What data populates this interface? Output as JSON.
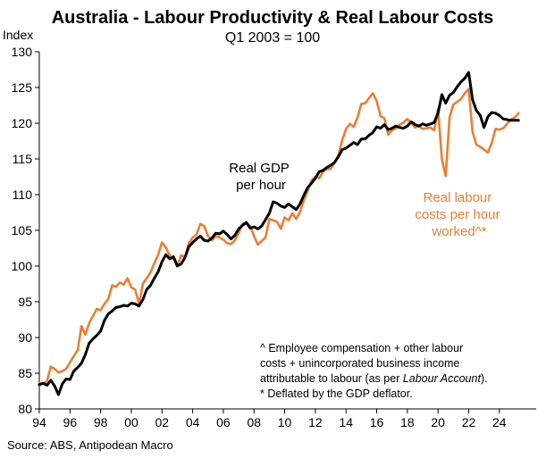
{
  "chart_data": {
    "type": "line",
    "title": "Australia - Labour Productivity & Real Labour Costs",
    "subtitle": "Q1 2003 = 100",
    "ylabel": "Index",
    "xlabel": "",
    "ylim": [
      80,
      130
    ],
    "yticks": [
      80,
      85,
      90,
      95,
      100,
      105,
      110,
      115,
      120,
      125,
      130
    ],
    "xlim": [
      1994,
      2026.4
    ],
    "xticks": [
      1994,
      1996,
      1998,
      2000,
      2002,
      2004,
      2006,
      2008,
      2010,
      2012,
      2014,
      2016,
      2018,
      2020,
      2022,
      2024
    ],
    "xticklabels": [
      "94",
      "96",
      "98",
      "00",
      "02",
      "04",
      "06",
      "08",
      "10",
      "12",
      "14",
      "16",
      "18",
      "20",
      "22",
      "24"
    ],
    "grid": false,
    "series": [
      {
        "name": "Real GDP per hour",
        "label_lines": [
          "Real GDP",
          "per hour"
        ],
        "color": "#000000",
        "points": [
          [
            1994.0,
            83.4
          ],
          [
            1994.25,
            83.6
          ],
          [
            1994.5,
            83.3
          ],
          [
            1994.75,
            84.0
          ],
          [
            1995.0,
            83.2
          ],
          [
            1995.25,
            82.0
          ],
          [
            1995.5,
            83.5
          ],
          [
            1995.75,
            84.2
          ],
          [
            1996.0,
            84.1
          ],
          [
            1996.25,
            85.3
          ],
          [
            1996.5,
            85.8
          ],
          [
            1996.75,
            86.4
          ],
          [
            1997.0,
            87.6
          ],
          [
            1997.25,
            89.2
          ],
          [
            1997.5,
            89.8
          ],
          [
            1997.75,
            90.3
          ],
          [
            1998.0,
            90.9
          ],
          [
            1998.25,
            92.4
          ],
          [
            1998.5,
            93.3
          ],
          [
            1998.75,
            93.7
          ],
          [
            1999.0,
            94.2
          ],
          [
            1999.25,
            94.3
          ],
          [
            1999.5,
            94.5
          ],
          [
            1999.75,
            94.4
          ],
          [
            2000.0,
            94.8
          ],
          [
            2000.25,
            94.7
          ],
          [
            2000.5,
            94.4
          ],
          [
            2000.75,
            95.3
          ],
          [
            2001.0,
            96.7
          ],
          [
            2001.25,
            97.3
          ],
          [
            2001.5,
            98.3
          ],
          [
            2001.75,
            99.2
          ],
          [
            2002.0,
            100.6
          ],
          [
            2002.25,
            101.6
          ],
          [
            2002.5,
            101.0
          ],
          [
            2002.75,
            101.3
          ],
          [
            2003.0,
            100.0
          ],
          [
            2003.25,
            100.3
          ],
          [
            2003.5,
            101.2
          ],
          [
            2003.75,
            102.7
          ],
          [
            2004.0,
            103.3
          ],
          [
            2004.25,
            103.8
          ],
          [
            2004.5,
            104.2
          ],
          [
            2004.75,
            103.6
          ],
          [
            2005.0,
            103.5
          ],
          [
            2005.25,
            103.9
          ],
          [
            2005.5,
            104.6
          ],
          [
            2005.75,
            104.5
          ],
          [
            2006.0,
            104.9
          ],
          [
            2006.25,
            104.4
          ],
          [
            2006.5,
            103.8
          ],
          [
            2006.75,
            104.3
          ],
          [
            2007.0,
            105.2
          ],
          [
            2007.25,
            105.7
          ],
          [
            2007.5,
            106.1
          ],
          [
            2007.75,
            105.3
          ],
          [
            2008.0,
            105.5
          ],
          [
            2008.25,
            105.2
          ],
          [
            2008.5,
            105.6
          ],
          [
            2008.75,
            106.5
          ],
          [
            2009.0,
            107.4
          ],
          [
            2009.25,
            109.0
          ],
          [
            2009.5,
            108.8
          ],
          [
            2009.75,
            108.4
          ],
          [
            2010.0,
            108.2
          ],
          [
            2010.25,
            108.7
          ],
          [
            2010.5,
            108.3
          ],
          [
            2010.75,
            107.9
          ],
          [
            2011.0,
            108.7
          ],
          [
            2011.25,
            109.9
          ],
          [
            2011.5,
            111.0
          ],
          [
            2011.75,
            111.6
          ],
          [
            2012.0,
            112.3
          ],
          [
            2012.25,
            113.2
          ],
          [
            2012.5,
            113.4
          ],
          [
            2012.75,
            113.8
          ],
          [
            2013.0,
            114.1
          ],
          [
            2013.25,
            114.5
          ],
          [
            2013.5,
            115.3
          ],
          [
            2013.75,
            116.3
          ],
          [
            2014.0,
            116.5
          ],
          [
            2014.25,
            116.9
          ],
          [
            2014.5,
            117.3
          ],
          [
            2014.75,
            117.0
          ],
          [
            2015.0,
            117.8
          ],
          [
            2015.25,
            117.8
          ],
          [
            2015.5,
            118.3
          ],
          [
            2015.75,
            118.7
          ],
          [
            2016.0,
            119.5
          ],
          [
            2016.25,
            119.3
          ],
          [
            2016.5,
            119.8
          ],
          [
            2016.75,
            119.1
          ],
          [
            2017.0,
            119.3
          ],
          [
            2017.25,
            119.6
          ],
          [
            2017.5,
            119.4
          ],
          [
            2017.75,
            119.3
          ],
          [
            2018.0,
            119.6
          ],
          [
            2018.25,
            120.2
          ],
          [
            2018.5,
            119.8
          ],
          [
            2018.75,
            119.6
          ],
          [
            2019.0,
            119.9
          ],
          [
            2019.25,
            119.7
          ],
          [
            2019.5,
            119.9
          ],
          [
            2019.75,
            120.1
          ],
          [
            2020.0,
            121.4
          ],
          [
            2020.25,
            124.0
          ],
          [
            2020.5,
            122.8
          ],
          [
            2020.75,
            123.9
          ],
          [
            2021.0,
            124.3
          ],
          [
            2021.25,
            125.1
          ],
          [
            2021.5,
            125.8
          ],
          [
            2021.75,
            126.3
          ],
          [
            2022.0,
            127.1
          ],
          [
            2022.25,
            123.3
          ],
          [
            2022.5,
            121.8
          ],
          [
            2022.75,
            121.1
          ],
          [
            2023.0,
            119.4
          ],
          [
            2023.25,
            120.9
          ],
          [
            2023.5,
            121.5
          ],
          [
            2023.75,
            121.4
          ],
          [
            2024.0,
            121.1
          ],
          [
            2024.25,
            120.6
          ],
          [
            2024.5,
            120.5
          ],
          [
            2024.75,
            120.4
          ],
          [
            2025.0,
            120.4
          ],
          [
            2025.25,
            120.4
          ]
        ]
      },
      {
        "name": "Real labour costs per hour worked^*",
        "label_lines": [
          "Real labour",
          "costs per hour",
          "worked^*"
        ],
        "color": "#ED7D31",
        "points": [
          [
            1994.0,
            83.6
          ],
          [
            1994.25,
            83.5
          ],
          [
            1994.5,
            83.9
          ],
          [
            1994.75,
            85.9
          ],
          [
            1995.0,
            85.6
          ],
          [
            1995.25,
            85.1
          ],
          [
            1995.5,
            85.3
          ],
          [
            1995.75,
            85.6
          ],
          [
            1996.0,
            86.5
          ],
          [
            1996.25,
            87.4
          ],
          [
            1996.5,
            88.2
          ],
          [
            1996.75,
            91.6
          ],
          [
            1997.0,
            90.4
          ],
          [
            1997.25,
            92.0
          ],
          [
            1997.5,
            93.0
          ],
          [
            1997.75,
            94.0
          ],
          [
            1998.0,
            93.8
          ],
          [
            1998.25,
            94.7
          ],
          [
            1998.5,
            95.4
          ],
          [
            1998.75,
            97.3
          ],
          [
            1999.0,
            97.1
          ],
          [
            1999.25,
            97.7
          ],
          [
            1999.5,
            97.4
          ],
          [
            1999.75,
            98.3
          ],
          [
            2000.0,
            97.0
          ],
          [
            2000.25,
            96.7
          ],
          [
            2000.5,
            94.7
          ],
          [
            2000.75,
            97.5
          ],
          [
            2001.0,
            98.3
          ],
          [
            2001.25,
            99.1
          ],
          [
            2001.5,
            100.4
          ],
          [
            2001.75,
            101.6
          ],
          [
            2002.0,
            103.3
          ],
          [
            2002.25,
            102.6
          ],
          [
            2002.5,
            101.5
          ],
          [
            2002.75,
            101.0
          ],
          [
            2003.0,
            100.0
          ],
          [
            2003.25,
            101.5
          ],
          [
            2003.5,
            101.3
          ],
          [
            2003.75,
            103.2
          ],
          [
            2004.0,
            104.0
          ],
          [
            2004.25,
            104.4
          ],
          [
            2004.5,
            105.9
          ],
          [
            2004.75,
            105.6
          ],
          [
            2005.0,
            104.2
          ],
          [
            2005.25,
            103.6
          ],
          [
            2005.5,
            104.2
          ],
          [
            2005.75,
            104.0
          ],
          [
            2006.0,
            103.7
          ],
          [
            2006.25,
            103.2
          ],
          [
            2006.5,
            103.1
          ],
          [
            2006.75,
            103.6
          ],
          [
            2007.0,
            104.6
          ],
          [
            2007.25,
            105.9
          ],
          [
            2007.5,
            106.1
          ],
          [
            2007.75,
            105.6
          ],
          [
            2008.0,
            104.2
          ],
          [
            2008.25,
            103.0
          ],
          [
            2008.5,
            103.5
          ],
          [
            2008.75,
            104.0
          ],
          [
            2009.0,
            106.6
          ],
          [
            2009.25,
            106.4
          ],
          [
            2009.5,
            106.2
          ],
          [
            2009.75,
            105.2
          ],
          [
            2010.0,
            106.8
          ],
          [
            2010.25,
            106.4
          ],
          [
            2010.5,
            107.4
          ],
          [
            2010.75,
            106.6
          ],
          [
            2011.0,
            107.6
          ],
          [
            2011.25,
            109.2
          ],
          [
            2011.5,
            110.5
          ],
          [
            2011.75,
            112.0
          ],
          [
            2012.0,
            112.5
          ],
          [
            2012.25,
            112.3
          ],
          [
            2012.5,
            113.2
          ],
          [
            2012.75,
            113.6
          ],
          [
            2013.0,
            113.6
          ],
          [
            2013.25,
            114.5
          ],
          [
            2013.5,
            115.5
          ],
          [
            2013.75,
            117.6
          ],
          [
            2014.0,
            119.2
          ],
          [
            2014.25,
            119.9
          ],
          [
            2014.5,
            119.5
          ],
          [
            2014.75,
            120.8
          ],
          [
            2015.0,
            122.7
          ],
          [
            2015.25,
            122.8
          ],
          [
            2015.5,
            123.5
          ],
          [
            2015.75,
            124.2
          ],
          [
            2016.0,
            123.1
          ],
          [
            2016.25,
            121.0
          ],
          [
            2016.5,
            120.7
          ],
          [
            2016.75,
            118.4
          ],
          [
            2017.0,
            119.0
          ],
          [
            2017.25,
            119.3
          ],
          [
            2017.5,
            119.8
          ],
          [
            2017.75,
            120.1
          ],
          [
            2018.0,
            120.6
          ],
          [
            2018.25,
            120.0
          ],
          [
            2018.5,
            119.4
          ],
          [
            2018.75,
            119.6
          ],
          [
            2019.0,
            119.2
          ],
          [
            2019.25,
            119.3
          ],
          [
            2019.5,
            119.4
          ],
          [
            2019.75,
            119.0
          ],
          [
            2020.0,
            122.0
          ],
          [
            2020.25,
            115.0
          ],
          [
            2020.5,
            112.6
          ],
          [
            2020.75,
            120.8
          ],
          [
            2021.0,
            122.6
          ],
          [
            2021.25,
            123.0
          ],
          [
            2021.5,
            123.4
          ],
          [
            2021.75,
            124.2
          ],
          [
            2022.0,
            124.8
          ],
          [
            2022.25,
            118.8
          ],
          [
            2022.5,
            117.0
          ],
          [
            2022.75,
            116.7
          ],
          [
            2023.0,
            116.3
          ],
          [
            2023.25,
            115.9
          ],
          [
            2023.5,
            117.2
          ],
          [
            2023.75,
            119.2
          ],
          [
            2024.0,
            119.1
          ],
          [
            2024.25,
            119.3
          ],
          [
            2024.5,
            119.9
          ],
          [
            2024.75,
            120.5
          ],
          [
            2025.0,
            120.8
          ],
          [
            2025.25,
            121.4
          ]
        ]
      }
    ],
    "annotation_lines": [
      {
        "parts": [
          {
            "text": "^ Employee compensation + other labour",
            "italic": false
          }
        ]
      },
      {
        "parts": [
          {
            "text": "costs + unincorporated business income",
            "italic": false
          }
        ]
      },
      {
        "parts": [
          {
            "text": "attributable to labour (as per ",
            "italic": false
          },
          {
            "text": "Labour Account",
            "italic": true
          },
          {
            "text": ").",
            "italic": false
          }
        ]
      },
      {
        "parts": [
          {
            "text": "* Deflated by the GDP deflator.",
            "italic": false
          }
        ]
      }
    ],
    "source": "Source: ABS, Antipodean Macro"
  }
}
